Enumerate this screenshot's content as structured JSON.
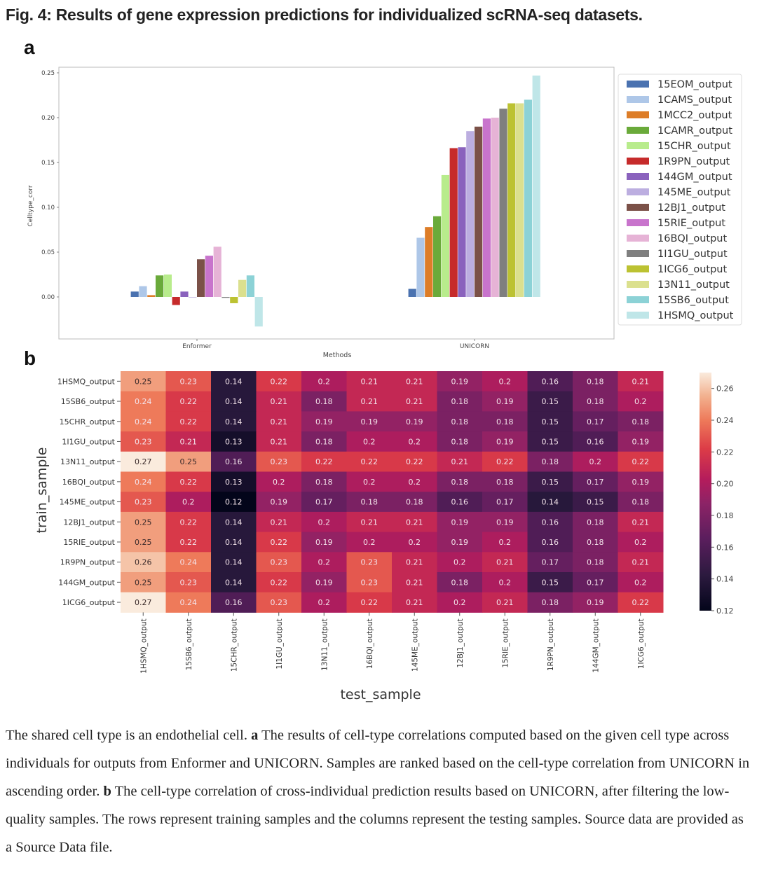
{
  "figure": {
    "title": "Fig. 4: Results of gene expression predictions for individualized scRNA-seq datasets.",
    "panel_a_letter": "a",
    "panel_b_letter": "b"
  },
  "caption": {
    "intro": "The shared cell type is an endothelial cell. ",
    "a_label": "a",
    "a_text": " The results of cell-type correlations computed based on the given cell type across individuals for outputs from Enformer and UNICORN. Samples are ranked based on the cell-type correlation from UNICORN in ascending order. ",
    "b_label": "b",
    "b_text": " The cell-type correlation of cross-individual prediction results based on UNICORN, after filtering the low-quality samples. The rows represent training samples and the columns represent the testing samples. Source data are provided as a Source Data file."
  },
  "chart_data": [
    {
      "type": "bar",
      "title": "",
      "xlabel": "Methods",
      "ylabel": "Celltype_corr",
      "ylim": [
        -0.047,
        0.262
      ],
      "yticks": [
        0.0,
        0.05,
        0.1,
        0.15,
        0.2,
        0.25
      ],
      "ytick_labels": [
        "0.00",
        "0.05",
        "0.10",
        "0.15",
        "0.20",
        "0.25"
      ],
      "categories": [
        "Enformer",
        "UNICORN"
      ],
      "legend_position": "right",
      "series": [
        {
          "name": "15EOM_output",
          "color": "#4a72b0",
          "values": [
            0.006,
            0.009
          ]
        },
        {
          "name": "1CAMS_output",
          "color": "#aec7e8",
          "values": [
            0.012,
            0.066
          ]
        },
        {
          "name": "1MCC2_output",
          "color": "#dd7d28",
          "values": [
            0.002,
            0.078
          ]
        },
        {
          "name": "1CAMR_output",
          "color": "#6aaa3a",
          "values": [
            0.024,
            0.09
          ]
        },
        {
          "name": "15CHR_output",
          "color": "#b8ec8c",
          "values": [
            0.025,
            0.136
          ]
        },
        {
          "name": "1R9PN_output",
          "color": "#c62b2b",
          "values": [
            -0.009,
            0.166
          ]
        },
        {
          "name": "144GM_output",
          "color": "#8a62bd",
          "values": [
            0.006,
            0.167
          ]
        },
        {
          "name": "145ME_output",
          "color": "#bcaee0",
          "values": [
            0.0,
            0.185
          ]
        },
        {
          "name": "12BJ1_output",
          "color": "#7b5148",
          "values": [
            0.042,
            0.19
          ]
        },
        {
          "name": "15RIE_output",
          "color": "#c874cc",
          "values": [
            0.046,
            0.199
          ]
        },
        {
          "name": "16BQI_output",
          "color": "#e6b3d6",
          "values": [
            0.056,
            0.2
          ]
        },
        {
          "name": "1I1GU_output",
          "color": "#7f7f7f",
          "values": [
            -0.001,
            0.21
          ]
        },
        {
          "name": "1ICG6_output",
          "color": "#bcc232",
          "values": [
            -0.007,
            0.216
          ]
        },
        {
          "name": "13N11_output",
          "color": "#dbe08e",
          "values": [
            0.019,
            0.216
          ]
        },
        {
          "name": "15SB6_output",
          "color": "#8cd2d6",
          "values": [
            0.024,
            0.22
          ]
        },
        {
          "name": "1HSMQ_output",
          "color": "#bfe6e8",
          "values": [
            -0.033,
            0.247
          ]
        }
      ]
    },
    {
      "type": "heatmap",
      "title": "",
      "xlabel": "test_sample",
      "ylabel": "train_sample",
      "rows": [
        "1HSMQ_output",
        "15SB6_output",
        "15CHR_output",
        "1I1GU_output",
        "13N11_output",
        "16BQI_output",
        "145ME_output",
        "12BJ1_output",
        "15RIE_output",
        "1R9PN_output",
        "144GM_output",
        "1ICG6_output"
      ],
      "columns": [
        "1HSMQ_output",
        "15SB6_output",
        "15CHR_output",
        "1I1GU_output",
        "13N11_output",
        "16BQI_output",
        "145ME_output",
        "12BJ1_output",
        "15RIE_output",
        "1R9PN_output",
        "144GM_output",
        "1ICG6_output"
      ],
      "values": [
        [
          0.25,
          0.23,
          0.14,
          0.22,
          0.2,
          0.21,
          0.21,
          0.19,
          0.2,
          0.16,
          0.18,
          0.21
        ],
        [
          0.24,
          0.22,
          0.14,
          0.21,
          0.18,
          0.21,
          0.21,
          0.18,
          0.19,
          0.15,
          0.18,
          0.2
        ],
        [
          0.24,
          0.22,
          0.14,
          0.21,
          0.19,
          0.19,
          0.19,
          0.18,
          0.18,
          0.15,
          0.17,
          0.18
        ],
        [
          0.23,
          0.21,
          0.13,
          0.21,
          0.18,
          0.2,
          0.2,
          0.18,
          0.19,
          0.15,
          0.16,
          0.19
        ],
        [
          0.27,
          0.25,
          0.16,
          0.23,
          0.22,
          0.22,
          0.22,
          0.21,
          0.22,
          0.18,
          0.2,
          0.22
        ],
        [
          0.24,
          0.22,
          0.13,
          0.2,
          0.18,
          0.2,
          0.2,
          0.18,
          0.18,
          0.15,
          0.17,
          0.19
        ],
        [
          0.23,
          0.2,
          0.12,
          0.19,
          0.17,
          0.18,
          0.18,
          0.16,
          0.17,
          0.14,
          0.15,
          0.18
        ],
        [
          0.25,
          0.22,
          0.14,
          0.21,
          0.2,
          0.21,
          0.21,
          0.19,
          0.19,
          0.16,
          0.18,
          0.21
        ],
        [
          0.25,
          0.22,
          0.14,
          0.22,
          0.19,
          0.2,
          0.2,
          0.19,
          0.2,
          0.16,
          0.18,
          0.2
        ],
        [
          0.26,
          0.24,
          0.14,
          0.23,
          0.2,
          0.23,
          0.21,
          0.2,
          0.21,
          0.17,
          0.18,
          0.21
        ],
        [
          0.25,
          0.23,
          0.14,
          0.22,
          0.19,
          0.23,
          0.21,
          0.18,
          0.2,
          0.15,
          0.17,
          0.2
        ],
        [
          0.27,
          0.24,
          0.16,
          0.23,
          0.2,
          0.22,
          0.21,
          0.2,
          0.21,
          0.18,
          0.19,
          0.22
        ]
      ],
      "colormap": "rocket",
      "colorbar": {
        "range": [
          0.12,
          0.27
        ],
        "ticks": [
          0.12,
          0.14,
          0.16,
          0.18,
          0.2,
          0.22,
          0.24,
          0.26
        ],
        "tick_labels": [
          "0.12",
          "0.14",
          "0.16",
          "0.18",
          "0.20",
          "0.22",
          "0.24",
          "0.26"
        ],
        "position": "right"
      }
    }
  ]
}
